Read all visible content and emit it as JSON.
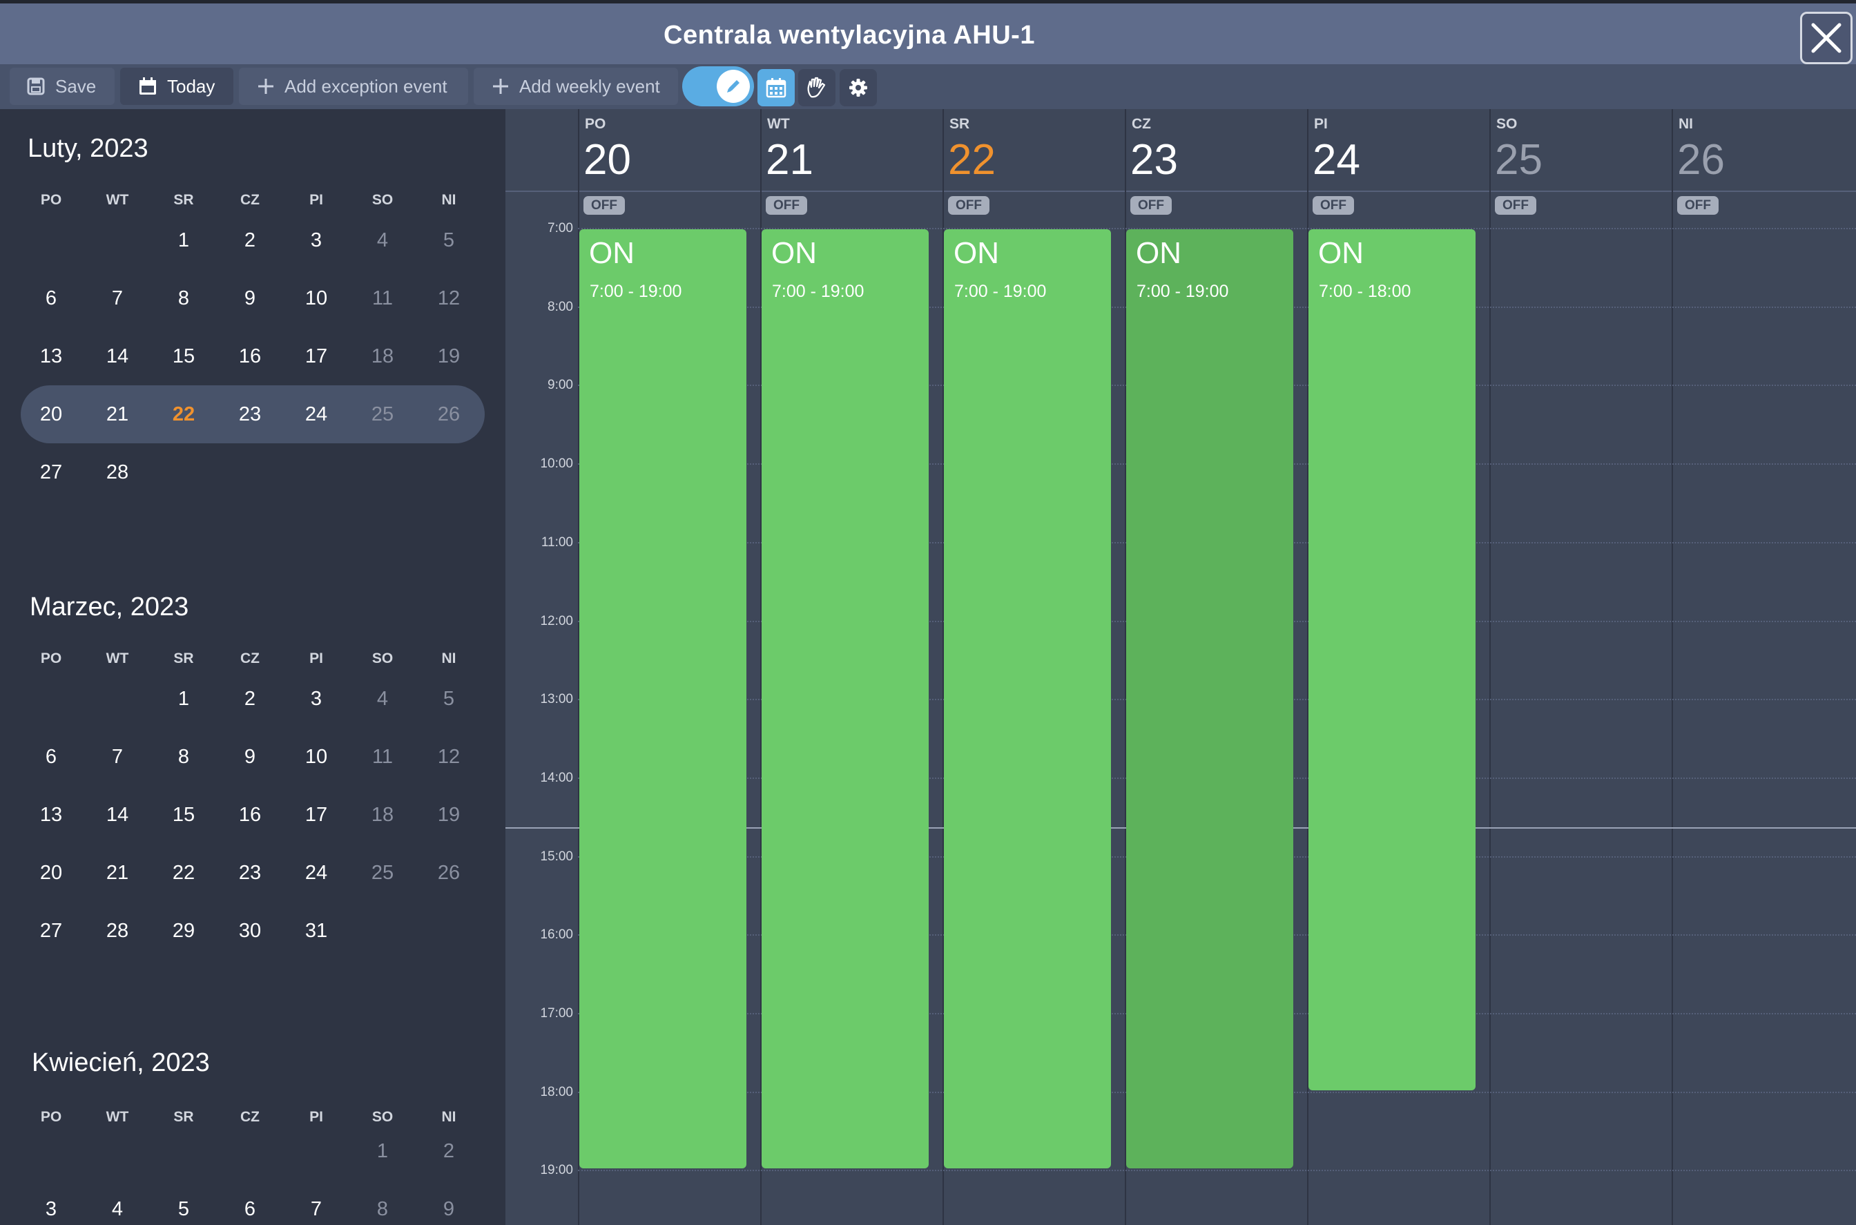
{
  "window": {
    "title": "Centrala wentylacyjna AHU-1"
  },
  "toolbar": {
    "save_label": "Save",
    "today_label": "Today",
    "add_exception_label": "Add exception event",
    "add_weekly_label": "Add weekly event"
  },
  "weekday_labels": [
    "PO",
    "WT",
    "SR",
    "CZ",
    "PI",
    "SO",
    "NI"
  ],
  "sidebar": {
    "months": [
      {
        "title": "Luty, 2023",
        "weeks": [
          [
            "",
            "",
            "1",
            "2",
            "3",
            "4",
            "5"
          ],
          [
            "6",
            "7",
            "8",
            "9",
            "10",
            "11",
            "12"
          ],
          [
            "13",
            "14",
            "15",
            "16",
            "17",
            "18",
            "19"
          ],
          [
            "20",
            "21",
            "22",
            "23",
            "24",
            "25",
            "26"
          ],
          [
            "27",
            "28",
            "",
            "",
            "",
            "",
            ""
          ]
        ]
      },
      {
        "title": "Marzec, 2023",
        "weeks": [
          [
            "",
            "",
            "1",
            "2",
            "3",
            "4",
            "5"
          ],
          [
            "6",
            "7",
            "8",
            "9",
            "10",
            "11",
            "12"
          ],
          [
            "13",
            "14",
            "15",
            "16",
            "17",
            "18",
            "19"
          ],
          [
            "20",
            "21",
            "22",
            "23",
            "24",
            "25",
            "26"
          ],
          [
            "27",
            "28",
            "29",
            "30",
            "31",
            "",
            ""
          ]
        ]
      },
      {
        "title": "Kwiecień, 2023",
        "weeks": [
          [
            "",
            "",
            "",
            "",
            "",
            "1",
            "2"
          ],
          [
            "3",
            "4",
            "5",
            "6",
            "7",
            "8",
            "9"
          ]
        ]
      }
    ]
  },
  "schedule": {
    "columns": [
      {
        "weekday": "PO",
        "day": "20",
        "badge": "OFF"
      },
      {
        "weekday": "WT",
        "day": "21",
        "badge": "OFF"
      },
      {
        "weekday": "SR",
        "day": "22",
        "badge": "OFF"
      },
      {
        "weekday": "CZ",
        "day": "23",
        "badge": "OFF"
      },
      {
        "weekday": "PI",
        "day": "24",
        "badge": "OFF"
      },
      {
        "weekday": "SO",
        "day": "25",
        "badge": "OFF"
      },
      {
        "weekday": "NI",
        "day": "26",
        "badge": "OFF"
      }
    ],
    "hours": [
      "7:00",
      "8:00",
      "9:00",
      "10:00",
      "11:00",
      "12:00",
      "13:00",
      "14:00",
      "15:00",
      "16:00",
      "17:00",
      "18:00",
      "19:00"
    ],
    "events": [
      {
        "col": 0,
        "state": "ON",
        "time": "7:00 - 19:00",
        "start": 7,
        "end": 19
      },
      {
        "col": 1,
        "state": "ON",
        "time": "7:00 - 19:00",
        "start": 7,
        "end": 19
      },
      {
        "col": 2,
        "state": "ON",
        "time": "7:00 - 19:00",
        "start": 7,
        "end": 19
      },
      {
        "col": 3,
        "state": "ON",
        "time": "7:00 - 19:00",
        "start": 7,
        "end": 19
      },
      {
        "col": 4,
        "state": "ON",
        "time": "7:00 - 18:00",
        "start": 7,
        "end": 18
      }
    ]
  },
  "colors": {
    "event_on": "#6ccb6a",
    "event_hover": "#5db25b",
    "today_accent": "#f0922e",
    "toggle": "#5aace3"
  },
  "icons": {
    "save": "floppy-disk-icon",
    "today": "calendar-icon",
    "add": "plus-icon",
    "edit": "pencil-icon",
    "calendar_view": "calendar-grid-icon",
    "manual": "hand-icon",
    "settings": "gear-icon",
    "close": "close-icon"
  }
}
